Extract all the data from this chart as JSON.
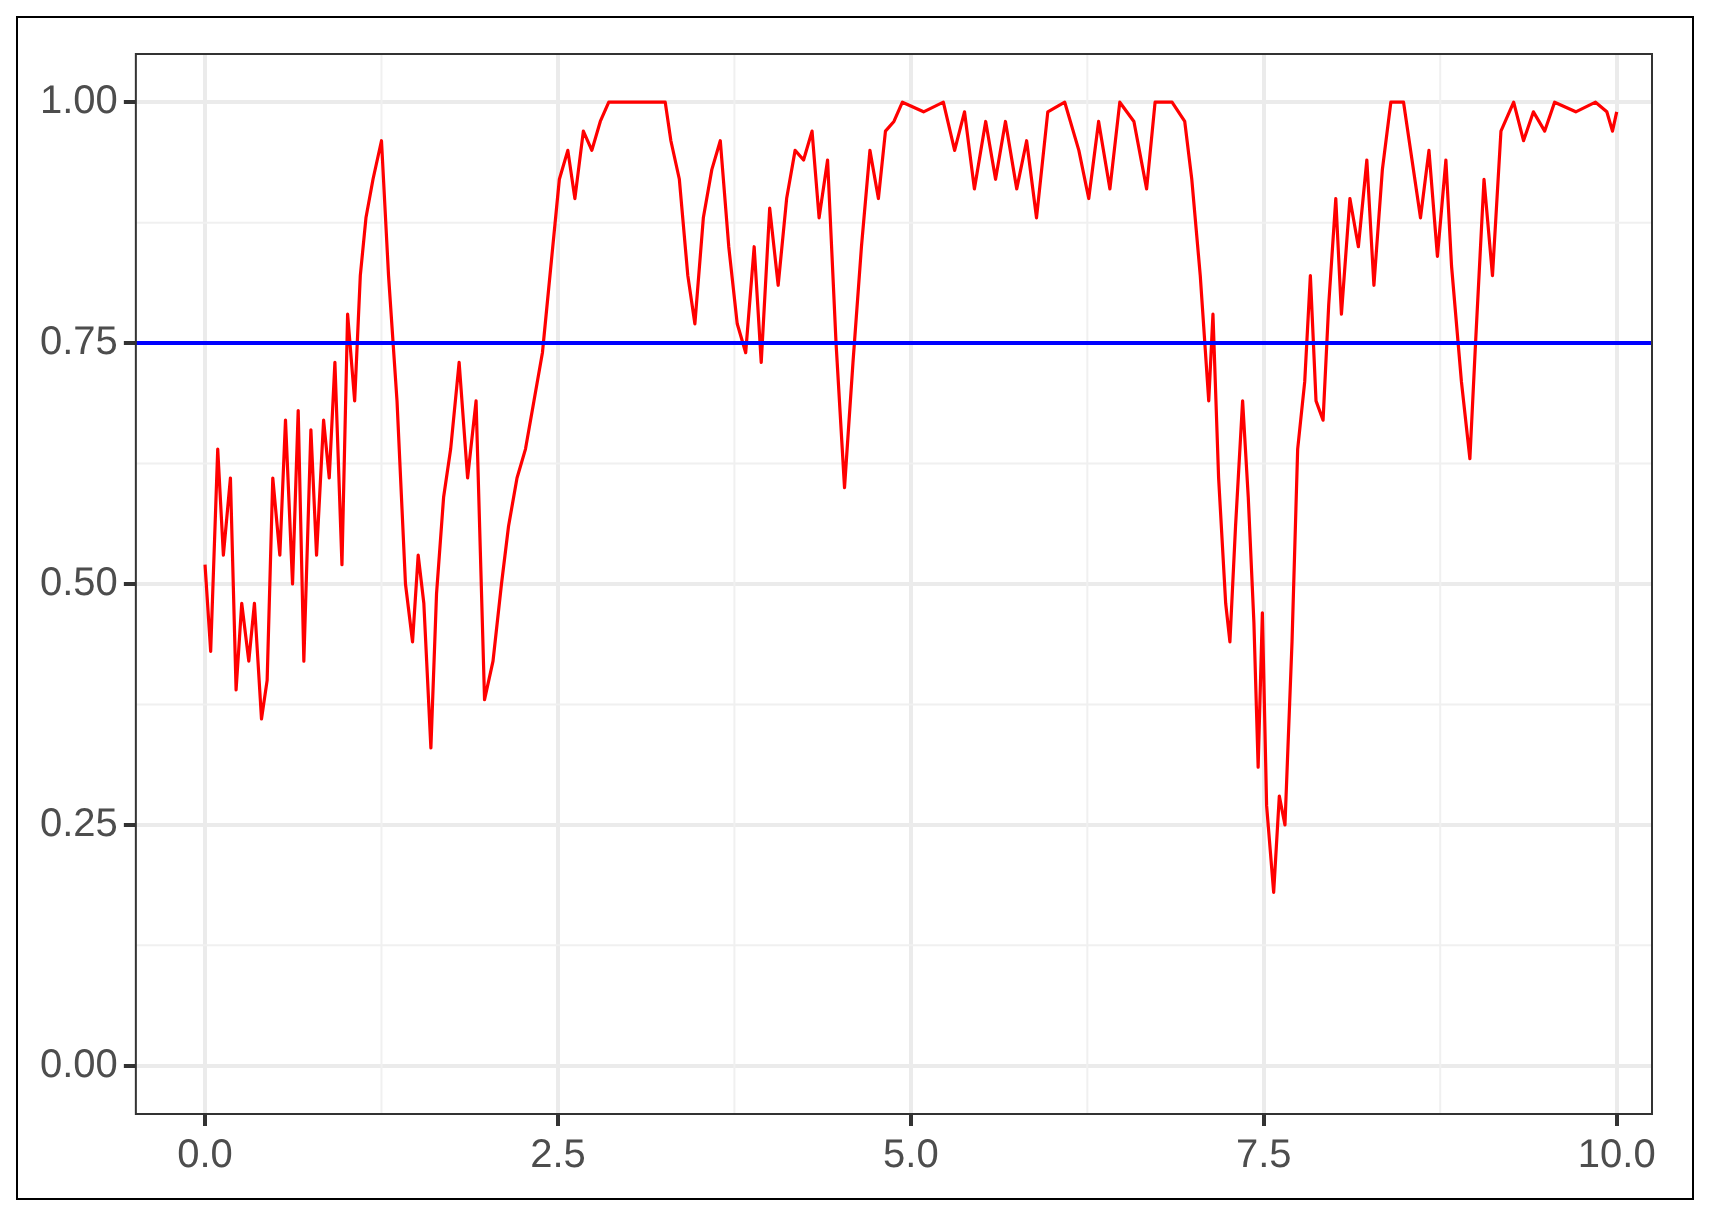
{
  "chart_data": {
    "type": "line",
    "x": [
      0,
      0.04,
      0.09,
      0.13,
      0.18,
      0.22,
      0.26,
      0.31,
      0.35,
      0.4,
      0.44,
      0.48,
      0.53,
      0.57,
      0.62,
      0.66,
      0.7,
      0.75,
      0.79,
      0.84,
      0.88,
      0.92,
      0.97,
      1.01,
      1.06,
      1.1,
      1.14,
      1.19,
      1.25,
      1.3,
      1.36,
      1.42,
      1.47,
      1.51,
      1.55,
      1.6,
      1.64,
      1.69,
      1.74,
      1.8,
      1.86,
      1.92,
      1.98,
      2.04,
      2.1,
      2.15,
      2.21,
      2.27,
      2.33,
      2.39,
      2.45,
      2.51,
      2.57,
      2.62,
      2.68,
      2.74,
      2.8,
      2.86,
      3.04,
      3.26,
      3.3,
      3.36,
      3.42,
      3.47,
      3.53,
      3.59,
      3.65,
      3.71,
      3.77,
      3.83,
      3.89,
      3.94,
      4.0,
      4.06,
      4.12,
      4.18,
      4.24,
      4.3,
      4.35,
      4.41,
      4.47,
      4.53,
      4.59,
      4.65,
      4.71,
      4.77,
      4.82,
      4.88,
      4.94,
      5.09,
      5.23,
      5.31,
      5.38,
      5.45,
      5.53,
      5.6,
      5.67,
      5.75,
      5.82,
      5.89,
      5.97,
      6.09,
      6.19,
      6.26,
      6.33,
      6.41,
      6.48,
      6.58,
      6.67,
      6.73,
      6.85,
      6.94,
      6.99,
      7.05,
      7.11,
      7.14,
      7.18,
      7.23,
      7.26,
      7.3,
      7.35,
      7.39,
      7.43,
      7.46,
      7.49,
      7.52,
      7.57,
      7.61,
      7.65,
      7.7,
      7.74,
      7.79,
      7.83,
      7.87,
      7.92,
      7.96,
      8.01,
      8.05,
      8.11,
      8.17,
      8.23,
      8.28,
      8.34,
      8.4,
      8.49,
      8.55,
      8.61,
      8.67,
      8.73,
      8.79,
      8.83,
      8.9,
      8.96,
      9.0,
      9.06,
      9.12,
      9.18,
      9.27,
      9.34,
      9.41,
      9.49,
      9.56,
      9.71,
      9.85,
      9.93,
      9.97,
      10
    ],
    "series": [
      {
        "color": "#ff0000",
        "values": [
          0.52,
          0.43,
          0.64,
          0.53,
          0.61,
          0.39,
          0.48,
          0.42,
          0.48,
          0.36,
          0.4,
          0.61,
          0.53,
          0.67,
          0.5,
          0.68,
          0.42,
          0.66,
          0.53,
          0.67,
          0.61,
          0.73,
          0.52,
          0.78,
          0.69,
          0.82,
          0.88,
          0.92,
          0.96,
          0.82,
          0.69,
          0.5,
          0.44,
          0.53,
          0.48,
          0.33,
          0.49,
          0.59,
          0.64,
          0.73,
          0.61,
          0.69,
          0.38,
          0.42,
          0.5,
          0.56,
          0.61,
          0.64,
          0.69,
          0.74,
          0.83,
          0.92,
          0.95,
          0.9,
          0.97,
          0.95,
          0.98,
          1.0,
          1.0,
          1.0,
          0.96,
          0.92,
          0.82,
          0.77,
          0.88,
          0.93,
          0.96,
          0.85,
          0.77,
          0.74,
          0.85,
          0.73,
          0.89,
          0.81,
          0.9,
          0.95,
          0.94,
          0.97,
          0.88,
          0.94,
          0.75,
          0.6,
          0.73,
          0.85,
          0.95,
          0.9,
          0.97,
          0.98,
          1.0,
          0.99,
          1.0,
          0.95,
          0.99,
          0.91,
          0.98,
          0.92,
          0.98,
          0.91,
          0.96,
          0.88,
          0.99,
          1.0,
          0.95,
          0.9,
          0.98,
          0.91,
          1.0,
          0.98,
          0.91,
          1.0,
          1.0,
          0.98,
          0.92,
          0.82,
          0.69,
          0.78,
          0.61,
          0.48,
          0.44,
          0.56,
          0.69,
          0.59,
          0.46,
          0.31,
          0.47,
          0.27,
          0.18,
          0.28,
          0.25,
          0.44,
          0.64,
          0.71,
          0.82,
          0.69,
          0.67,
          0.79,
          0.9,
          0.78,
          0.9,
          0.85,
          0.94,
          0.81,
          0.93,
          1.0,
          1.0,
          0.94,
          0.88,
          0.95,
          0.84,
          0.94,
          0.83,
          0.71,
          0.63,
          0.75,
          0.92,
          0.82,
          0.97,
          1.0,
          0.96,
          0.99,
          0.97,
          1.0,
          0.99,
          1.0,
          0.99,
          0.97,
          0.99
        ]
      }
    ],
    "xlim": [
      -0.49,
      10.25
    ],
    "ylim": [
      -0.05,
      1.05
    ],
    "xticks": [
      {
        "value": 0,
        "label": "0.0"
      },
      {
        "value": 2.5,
        "label": "2.5"
      },
      {
        "value": 5,
        "label": "5.0"
      },
      {
        "value": 7.5,
        "label": "7.5"
      },
      {
        "value": 10,
        "label": "10.0"
      }
    ],
    "yticks": [
      {
        "value": 0,
        "label": "0.00"
      },
      {
        "value": 0.25,
        "label": "0.25"
      },
      {
        "value": 0.5,
        "label": "0.50"
      },
      {
        "value": 0.75,
        "label": "0.75"
      },
      {
        "value": 1,
        "label": "1.00"
      }
    ],
    "ref_lines": [
      {
        "axis": "y",
        "value": 0.75,
        "color": "#0000ff"
      }
    ],
    "grid": true,
    "line_style": "solid"
  }
}
